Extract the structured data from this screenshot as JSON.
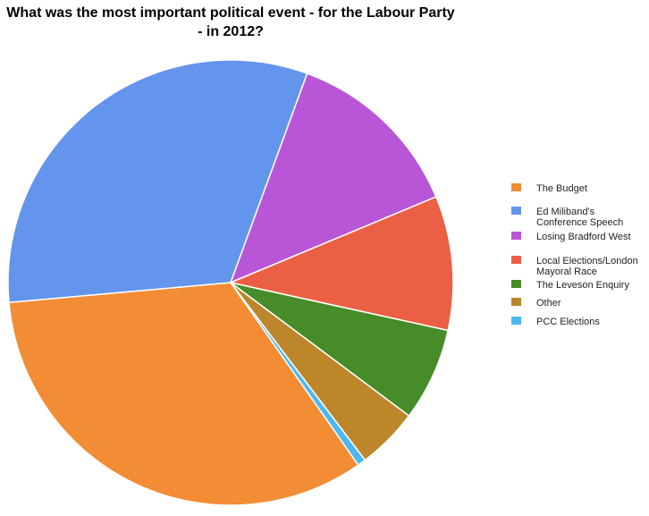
{
  "chart_data": {
    "type": "pie",
    "title_lines": [
      "What was the most important political event - for the Labour Party",
      "- in 2012?"
    ],
    "slices": [
      {
        "label_lines": [
          "The Budget"
        ],
        "value": 33.5,
        "color": "#F28C35"
      },
      {
        "label_lines": [
          "Ed Miliband's",
          "Conference Speech"
        ],
        "value": 32.2,
        "color": "#6495ED"
      },
      {
        "label_lines": [
          "Losing Bradford West"
        ],
        "value": 13.2,
        "color": "#B956D8"
      },
      {
        "label_lines": [
          "Local Elections/London",
          "Mayoral Race"
        ],
        "value": 9.8,
        "color": "#EB6044"
      },
      {
        "label_lines": [
          "The Leveson Enquiry"
        ],
        "value": 6.8,
        "color": "#468C28"
      },
      {
        "label_lines": [
          "Other"
        ],
        "value": 4.5,
        "color": "#BD862B"
      },
      {
        "label_lines": [
          "PCC Elections"
        ],
        "value": 0.6,
        "color": "#4CB8F0"
      }
    ],
    "legend_position": "right"
  }
}
